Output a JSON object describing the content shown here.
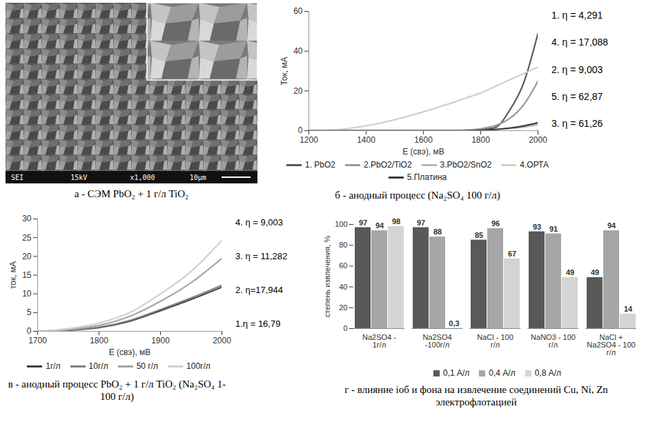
{
  "chart_data": [
    {
      "type": "image",
      "caption": "а - СЭМ PbO₂ + 1 г/л TiO₂",
      "image_text": [
        "SEI",
        "15kV",
        "x1,000",
        "10μm"
      ]
    },
    {
      "type": "line",
      "caption": "б - анодный процесс (Na₂SO₄ 100 г/л)",
      "x_label": "E (свэ), мВ",
      "y_label": "Ток, мА",
      "xlim": [
        1200,
        2000
      ],
      "xticks": [
        1200,
        1400,
        1600,
        1800,
        2000
      ],
      "ylim": [
        0,
        60
      ],
      "yticks": [
        0,
        20,
        40,
        60
      ],
      "grid": false,
      "legend": "bottom",
      "x": [
        1200,
        1250,
        1300,
        1350,
        1400,
        1450,
        1500,
        1550,
        1600,
        1650,
        1700,
        1750,
        1800,
        1850,
        1900,
        1950,
        2000
      ],
      "series": [
        {
          "name": "1. PbO2",
          "color": "#595959",
          "values": [
            0,
            0,
            0,
            0,
            0,
            0,
            0,
            0,
            0,
            0,
            0,
            0.2,
            0.6,
            1.5,
            10,
            24,
            49
          ]
        },
        {
          "name": "2.PbO2/TiO2",
          "color": "#9a9a9a",
          "values": [
            0,
            0,
            0,
            0,
            0,
            0,
            0,
            0,
            0,
            0,
            0.1,
            0.3,
            1,
            2.5,
            6,
            13,
            25
          ]
        },
        {
          "name": "3.PbO2/SnO2",
          "color": "#b8b8b8",
          "values": [
            0,
            0,
            0,
            0,
            0,
            0,
            0,
            0,
            0,
            0,
            0,
            0.1,
            0.3,
            0.6,
            1.1,
            1.8,
            3
          ]
        },
        {
          "name": "4.ОРТА",
          "color": "#cfcfcf",
          "values": [
            0,
            0.1,
            0.5,
            1.3,
            2.5,
            3.8,
            5.5,
            7.4,
            9.5,
            11.7,
            14,
            16.5,
            19,
            22.2,
            25.5,
            28.7,
            32
          ]
        },
        {
          "name": "5.Платина",
          "color": "#3a3a3a",
          "values": [
            0,
            0,
            0,
            0,
            0,
            0,
            0,
            0,
            0,
            0,
            0,
            0,
            0.2,
            0.6,
            1.3,
            2.4,
            4
          ]
        }
      ],
      "annotations": [
        "1. η = 4,291",
        "4. η = 17,088",
        "2. η = 9,003",
        "5. η = 62,87",
        "3. η = 61,26"
      ]
    },
    {
      "type": "line",
      "caption": "в - анодный процесс PbO₂ + 1 г/л TiO₂ (Na₂SO₄ 1-100 г/л)",
      "x_label": "E (свэ), мВ",
      "y_label": "ток, мА",
      "xlim": [
        1700,
        2000
      ],
      "xticks": [
        1700,
        1800,
        1900,
        2000
      ],
      "ylim": [
        0,
        30
      ],
      "yticks": [
        0,
        5,
        10,
        15,
        20,
        25,
        30
      ],
      "grid": false,
      "legend": "bottom",
      "x": [
        1700,
        1750,
        1800,
        1850,
        1900,
        1950,
        2000
      ],
      "series": [
        {
          "name": "1г/л",
          "color": "#404040",
          "values": [
            0,
            0.3,
            1,
            2.7,
            5.5,
            8.5,
            11.8
          ]
        },
        {
          "name": "10г/л",
          "color": "#808080",
          "values": [
            0,
            0.35,
            1.1,
            2.9,
            5.8,
            8.9,
            12.3
          ]
        },
        {
          "name": "50 г/л",
          "color": "#a6a6a6",
          "values": [
            0,
            0.5,
            1.6,
            4,
            8,
            13,
            19.5
          ]
        },
        {
          "name": "100г/л",
          "color": "#d0d0d0",
          "values": [
            0,
            0.7,
            2.2,
            5,
            10,
            16,
            24.3
          ]
        }
      ],
      "annotations": [
        "4. η = 9,003",
        "3. η = 11,282",
        "2. η=17,944",
        "1.η = 16,79"
      ]
    },
    {
      "type": "bar",
      "caption": "г - влияние iоб и фона на извлечение соединений Cu, Ni, Zn электрофлотацией",
      "y_label": "степень извлечения, %",
      "ylim": [
        0,
        100
      ],
      "yticks": [
        0,
        20,
        40,
        60,
        80,
        100
      ],
      "grid": false,
      "legend": "bottom",
      "data_labels": true,
      "categories": [
        "Na2SO4 - 1г/л",
        "Na2SO4 -100г/л",
        "NaCl - 100 г/л",
        "NaNO3 - 100 г/л",
        "NaCl + Na2SO4 - 100 г/л"
      ],
      "series": [
        {
          "name": "0,1 А/л",
          "color": "#595959",
          "values": [
            97,
            97,
            85,
            93,
            49
          ]
        },
        {
          "name": "0,4 А/л",
          "color": "#a6a6a6",
          "values": [
            94,
            88,
            96,
            91,
            94
          ]
        },
        {
          "name": "0,8 А/л",
          "color": "#d4d4d4",
          "values": [
            98,
            0.3,
            67,
            49,
            14
          ],
          "value_labels": [
            "98",
            "0,3",
            "67",
            "49",
            "14"
          ]
        }
      ]
    }
  ]
}
